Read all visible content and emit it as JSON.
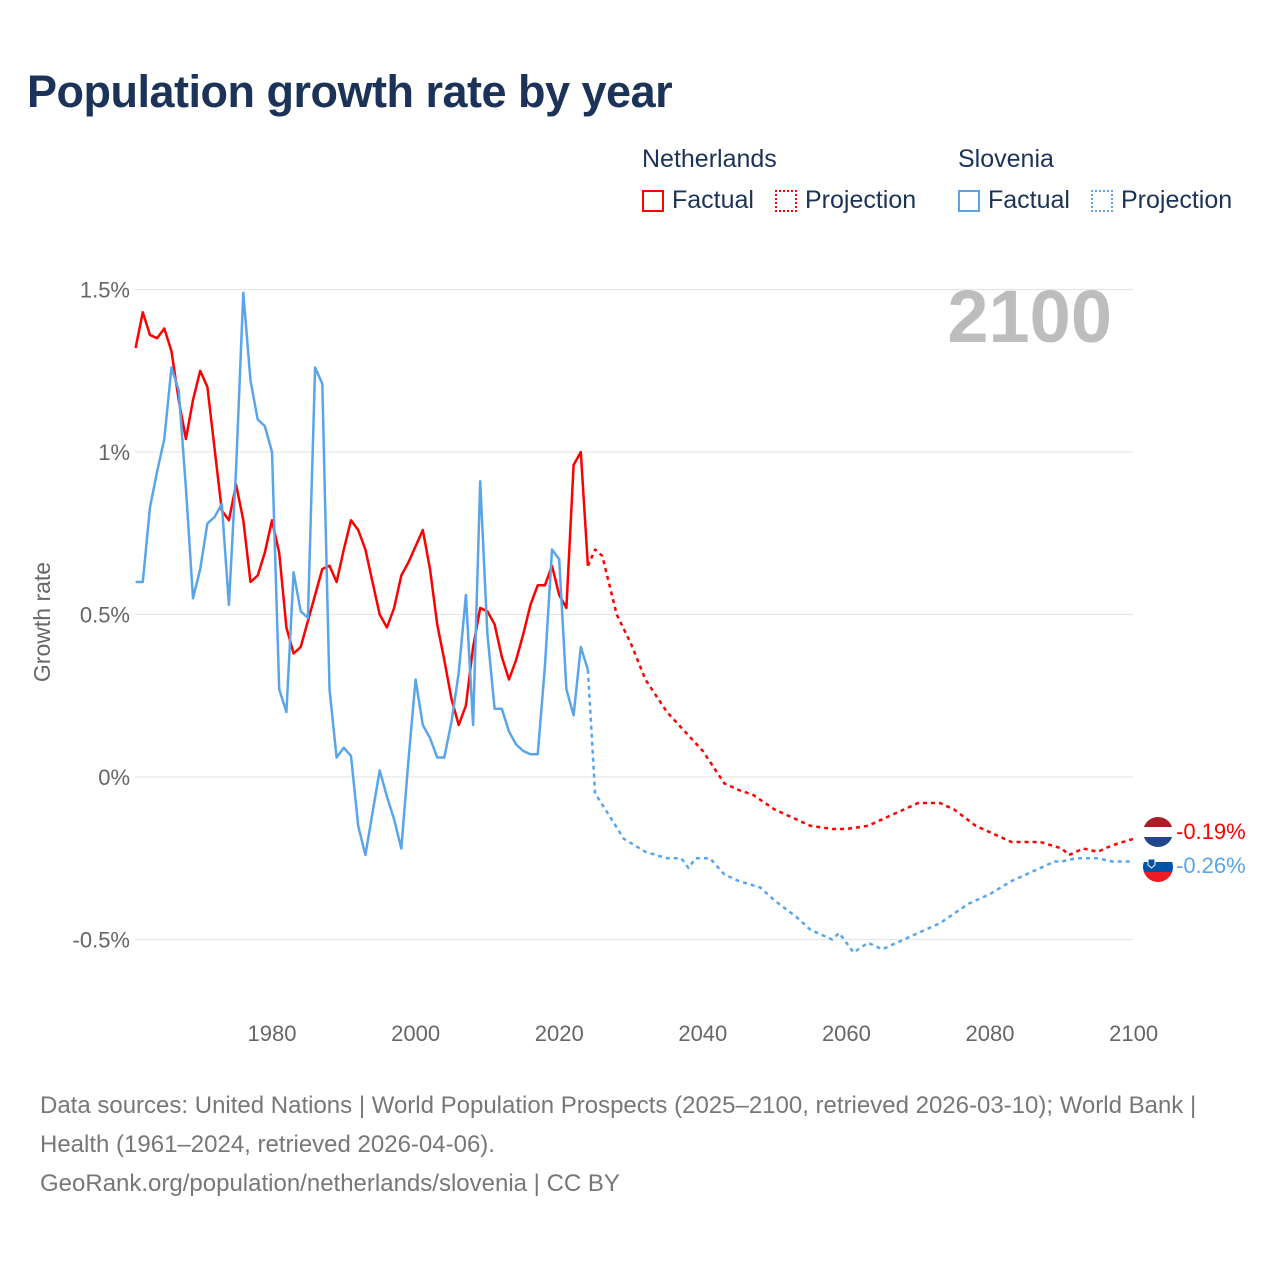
{
  "title": "Population growth rate by year",
  "legend": {
    "groups": [
      {
        "name": "Netherlands",
        "factual": "Factual",
        "projection": "Projection",
        "color": "#ff0000"
      },
      {
        "name": "Slovenia",
        "factual": "Factual",
        "projection": "Projection",
        "color": "#5aa5ea"
      }
    ]
  },
  "year_watermark": "2100",
  "end_labels": {
    "netherlands": "-0.19%",
    "slovenia": "-0.26%"
  },
  "source": {
    "line1": "Data sources: United Nations | World Population Prospects (2025–2100, retrieved 2026-03-10); World Bank | Health (1961–2024, retrieved 2026-04-06).",
    "line2": "GeoRank.org/population/netherlands/slovenia | CC BY"
  },
  "chart_data": {
    "type": "line",
    "title": "Population growth rate by year",
    "xlabel": "",
    "ylabel": "Growth rate",
    "xlim": [
      1961,
      2100
    ],
    "ylim": [
      -0.7,
      1.5
    ],
    "x_ticks": [
      "1980",
      "2000",
      "2020",
      "2040",
      "2060",
      "2080",
      "2100"
    ],
    "x_tick_values": [
      1980,
      2000,
      2020,
      2040,
      2060,
      2080,
      2100
    ],
    "y_ticks": [
      "1.5%",
      "1%",
      "0.5%",
      "0%",
      "-0.5%"
    ],
    "y_tick_values": [
      1.5,
      1,
      0.5,
      0,
      -0.5
    ],
    "grid": true,
    "legend_position": "top-right",
    "series": [
      {
        "name": "Netherlands Factual",
        "color": "#ff0000",
        "style": "solid",
        "x": [
          1961,
          1962,
          1963,
          1964,
          1965,
          1966,
          1967,
          1968,
          1969,
          1970,
          1971,
          1972,
          1973,
          1974,
          1975,
          1976,
          1977,
          1978,
          1979,
          1980,
          1981,
          1982,
          1983,
          1984,
          1985,
          1986,
          1987,
          1988,
          1989,
          1990,
          1991,
          1992,
          1993,
          1994,
          1995,
          1996,
          1997,
          1998,
          1999,
          2000,
          2001,
          2002,
          2003,
          2004,
          2005,
          2006,
          2007,
          2008,
          2009,
          2010,
          2011,
          2012,
          2013,
          2014,
          2015,
          2016,
          2017,
          2018,
          2019,
          2020,
          2021,
          2022,
          2023,
          2024
        ],
        "y": [
          1.32,
          1.43,
          1.36,
          1.35,
          1.38,
          1.31,
          1.16,
          1.04,
          1.16,
          1.25,
          1.2,
          1.01,
          0.82,
          0.79,
          0.9,
          0.79,
          0.6,
          0.62,
          0.69,
          0.79,
          0.69,
          0.46,
          0.38,
          0.4,
          0.48,
          0.56,
          0.64,
          0.65,
          0.6,
          0.7,
          0.79,
          0.76,
          0.7,
          0.6,
          0.5,
          0.46,
          0.52,
          0.62,
          0.66,
          0.71,
          0.76,
          0.64,
          0.47,
          0.36,
          0.24,
          0.16,
          0.22,
          0.4,
          0.52,
          0.51,
          0.47,
          0.37,
          0.3,
          0.36,
          0.44,
          0.53,
          0.59,
          0.59,
          0.65,
          0.56,
          0.52,
          0.96,
          1.0,
          0.65
        ]
      },
      {
        "name": "Netherlands Projection",
        "color": "#ff0000",
        "style": "dotted",
        "x": [
          2024,
          2025,
          2026,
          2028,
          2030,
          2032,
          2035,
          2040,
          2043,
          2045,
          2047,
          2050,
          2055,
          2058,
          2060,
          2063,
          2065,
          2068,
          2070,
          2073,
          2075,
          2078,
          2080,
          2083,
          2087,
          2090,
          2091,
          2093,
          2095,
          2097,
          2100
        ],
        "y": [
          0.65,
          0.7,
          0.68,
          0.5,
          0.41,
          0.3,
          0.2,
          0.08,
          -0.02,
          -0.04,
          -0.055,
          -0.1,
          -0.15,
          -0.16,
          -0.16,
          -0.15,
          -0.13,
          -0.1,
          -0.08,
          -0.08,
          -0.1,
          -0.15,
          -0.17,
          -0.2,
          -0.2,
          -0.22,
          -0.24,
          -0.22,
          -0.23,
          -0.21,
          -0.19
        ]
      },
      {
        "name": "Slovenia Factual",
        "color": "#5aa5ea",
        "style": "solid",
        "x": [
          1961,
          1962,
          1963,
          1964,
          1965,
          1966,
          1967,
          1968,
          1969,
          1970,
          1971,
          1972,
          1973,
          1974,
          1975,
          1976,
          1977,
          1978,
          1979,
          1980,
          1981,
          1982,
          1983,
          1984,
          1985,
          1986,
          1987,
          1988,
          1989,
          1990,
          1991,
          1992,
          1993,
          1994,
          1995,
          1996,
          1997,
          1998,
          1999,
          2000,
          2001,
          2002,
          2003,
          2004,
          2005,
          2006,
          2007,
          2008,
          2009,
          2010,
          2011,
          2012,
          2013,
          2014,
          2015,
          2016,
          2017,
          2018,
          2019,
          2020,
          2021,
          2022,
          2023,
          2024
        ],
        "y": [
          0.6,
          0.6,
          0.83,
          0.94,
          1.04,
          1.26,
          1.19,
          0.89,
          0.55,
          0.64,
          0.78,
          0.8,
          0.84,
          0.53,
          0.95,
          1.49,
          1.22,
          1.1,
          1.08,
          1.0,
          0.27,
          0.2,
          0.63,
          0.51,
          0.49,
          1.26,
          1.21,
          0.27,
          0.06,
          0.09,
          0.065,
          -0.15,
          -0.24,
          -0.11,
          0.02,
          -0.06,
          -0.13,
          -0.22,
          0.05,
          0.3,
          0.16,
          0.12,
          0.06,
          0.06,
          0.17,
          0.32,
          0.56,
          0.16,
          0.91,
          0.44,
          0.21,
          0.21,
          0.14,
          0.1,
          0.08,
          0.07,
          0.07,
          0.34,
          0.7,
          0.67,
          0.27,
          0.19,
          0.4,
          0.33
        ]
      },
      {
        "name": "Slovenia Projection",
        "color": "#5aa5ea",
        "style": "dotted",
        "x": [
          2024,
          2025,
          2027,
          2029,
          2032,
          2035,
          2037,
          2038,
          2039,
          2041,
          2043,
          2045,
          2048,
          2050,
          2053,
          2055,
          2058,
          2059,
          2061,
          2063,
          2065,
          2068,
          2070,
          2073,
          2075,
          2077,
          2080,
          2083,
          2086,
          2089,
          2090,
          2092,
          2095,
          2097,
          2100
        ],
        "y": [
          0.33,
          -0.05,
          -0.12,
          -0.19,
          -0.23,
          -0.25,
          -0.25,
          -0.28,
          -0.25,
          -0.25,
          -0.3,
          -0.32,
          -0.34,
          -0.38,
          -0.43,
          -0.47,
          -0.5,
          -0.48,
          -0.54,
          -0.51,
          -0.53,
          -0.5,
          -0.48,
          -0.45,
          -0.42,
          -0.39,
          -0.36,
          -0.32,
          -0.29,
          -0.26,
          -0.26,
          -0.25,
          -0.25,
          -0.26,
          -0.26
        ]
      }
    ]
  }
}
